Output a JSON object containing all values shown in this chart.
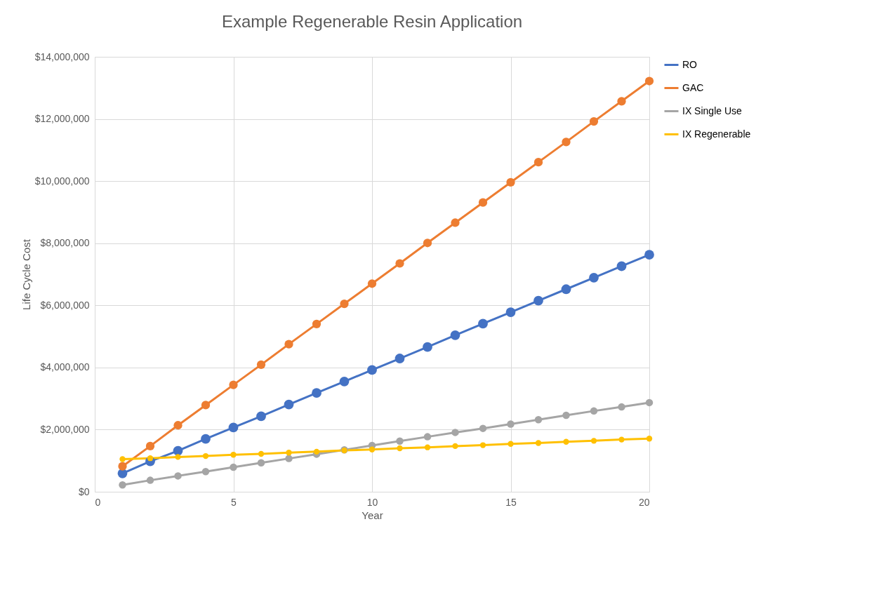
{
  "chart_data": {
    "type": "line",
    "title": "Example Regenerable Resin Application",
    "xlabel": "Year",
    "ylabel": "Life Cycle Cost",
    "x": [
      1,
      2,
      3,
      4,
      5,
      6,
      7,
      8,
      9,
      10,
      11,
      12,
      13,
      14,
      15,
      16,
      17,
      18,
      19,
      20
    ],
    "series": [
      {
        "name": "RO",
        "color": "#4472c4",
        "values": [
          590000,
          980000,
          1320000,
          1700000,
          2070000,
          2430000,
          2810000,
          3180000,
          3550000,
          3920000,
          4290000,
          4660000,
          5040000,
          5410000,
          5780000,
          6150000,
          6520000,
          6890000,
          7260000,
          7630000
        ]
      },
      {
        "name": "GAC",
        "color": "#ed7d31",
        "values": [
          820000,
          1470000,
          2140000,
          2790000,
          3440000,
          4090000,
          4750000,
          5400000,
          6050000,
          6700000,
          7350000,
          8010000,
          8660000,
          9310000,
          9960000,
          10610000,
          11260000,
          11920000,
          12570000,
          13220000
        ]
      },
      {
        "name": "IX Single Use",
        "color": "#a5a5a5",
        "values": [
          220000,
          370000,
          510000,
          650000,
          790000,
          930000,
          1070000,
          1210000,
          1350000,
          1490000,
          1630000,
          1770000,
          1910000,
          2040000,
          2180000,
          2320000,
          2460000,
          2600000,
          2730000,
          2870000
        ]
      },
      {
        "name": "IX Regenerable",
        "color": "#ffc000",
        "values": [
          1050000,
          1080000,
          1120000,
          1150000,
          1190000,
          1220000,
          1260000,
          1290000,
          1330000,
          1360000,
          1400000,
          1430000,
          1470000,
          1500000,
          1540000,
          1570000,
          1610000,
          1640000,
          1680000,
          1710000
        ]
      }
    ],
    "xlim": [
      0,
      20
    ],
    "xticks": [
      0,
      5,
      10,
      15,
      20
    ],
    "ylim": [
      0,
      14000000
    ],
    "yticks": [
      {
        "value": 0,
        "label": "$0"
      },
      {
        "value": 2000000,
        "label": "$2,000,000"
      },
      {
        "value": 4000000,
        "label": "$4,000,000"
      },
      {
        "value": 6000000,
        "label": "$6,000,000"
      },
      {
        "value": 8000000,
        "label": "$8,000,000"
      },
      {
        "value": 10000000,
        "label": "$10,000,000"
      },
      {
        "value": 12000000,
        "label": "$12,000,000"
      },
      {
        "value": 14000000,
        "label": "$14,000,000"
      }
    ],
    "grid": true,
    "legend": "right",
    "marker": "circle",
    "line_style": "solid"
  }
}
